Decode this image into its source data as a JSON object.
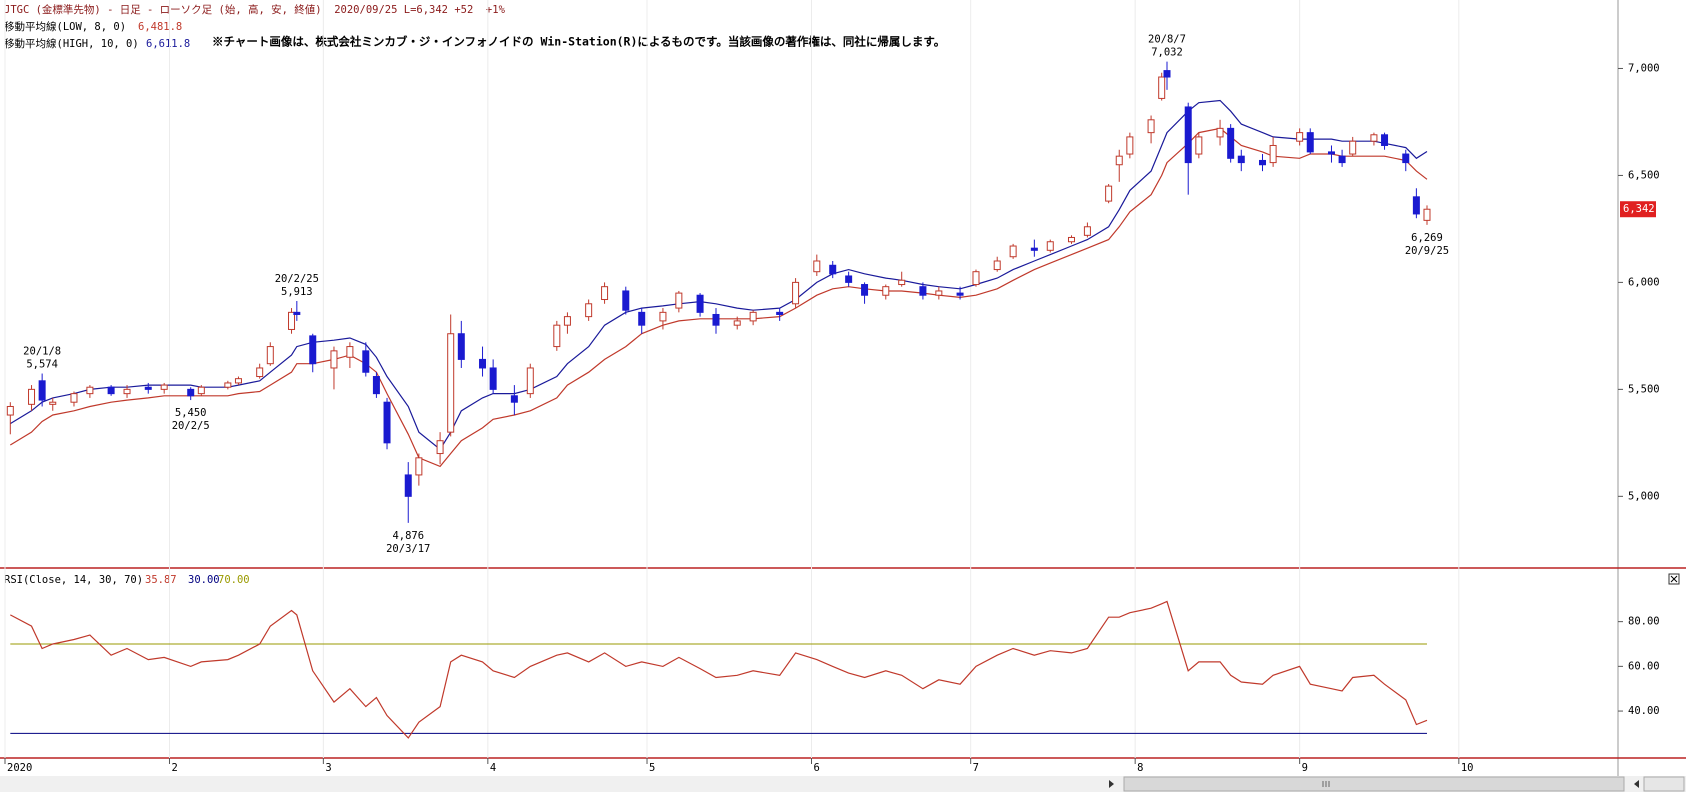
{
  "chart_data": [
    {
      "type": "candlestick",
      "title": "JTGC (金標準先物) - 日足 - ローソク足 (始, 高, 安, 終値)  2020/09/25 L=6,342 +52  +1%",
      "note": "※チャート画像は、株式会社ミンカブ・ジ・インフォノイドの Win-Station(R)によるものです。当該画像の著作権は、同社に帰属します。",
      "up_color": "#c0392b",
      "down_color": "#1a1ad0",
      "x": [
        "2020-01-02",
        "2020-01-06",
        "2020-01-08",
        "2020-01-10",
        "2020-01-14",
        "2020-01-17",
        "2020-01-21",
        "2020-01-24",
        "2020-01-28",
        "2020-01-31",
        "2020-02-05",
        "2020-02-07",
        "2020-02-12",
        "2020-02-14",
        "2020-02-18",
        "2020-02-20",
        "2020-02-24",
        "2020-02-25",
        "2020-02-28",
        "2020-03-03",
        "2020-03-06",
        "2020-03-09",
        "2020-03-11",
        "2020-03-13",
        "2020-03-17",
        "2020-03-19",
        "2020-03-23",
        "2020-03-25",
        "2020-03-27",
        "2020-03-31",
        "2020-04-02",
        "2020-04-06",
        "2020-04-09",
        "2020-04-14",
        "2020-04-16",
        "2020-04-20",
        "2020-04-23",
        "2020-04-27",
        "2020-04-30",
        "2020-05-04",
        "2020-05-07",
        "2020-05-11",
        "2020-05-14",
        "2020-05-18",
        "2020-05-21",
        "2020-05-26",
        "2020-05-29",
        "2020-06-02",
        "2020-06-05",
        "2020-06-08",
        "2020-06-11",
        "2020-06-15",
        "2020-06-18",
        "2020-06-22",
        "2020-06-25",
        "2020-06-29",
        "2020-07-02",
        "2020-07-06",
        "2020-07-09",
        "2020-07-13",
        "2020-07-16",
        "2020-07-20",
        "2020-07-23",
        "2020-07-27",
        "2020-07-29",
        "2020-07-31",
        "2020-08-04",
        "2020-08-06",
        "2020-08-07",
        "2020-08-11",
        "2020-08-13",
        "2020-08-17",
        "2020-08-19",
        "2020-08-21",
        "2020-08-25",
        "2020-08-27",
        "2020-09-01",
        "2020-09-03",
        "2020-09-07",
        "2020-09-09",
        "2020-09-11",
        "2020-09-15",
        "2020-09-17",
        "2020-09-21",
        "2020-09-23",
        "2020-09-25"
      ],
      "open": [
        5380,
        5430,
        5540,
        5430,
        5440,
        5480,
        5510,
        5480,
        5510,
        5500,
        5500,
        5480,
        5510,
        5530,
        5560,
        5620,
        5780,
        5860,
        5750,
        5600,
        5650,
        5680,
        5560,
        5440,
        5100,
        5100,
        5200,
        5300,
        5760,
        5640,
        5600,
        5470,
        5480,
        5700,
        5800,
        5840,
        5920,
        5960,
        5860,
        5820,
        5880,
        5940,
        5850,
        5800,
        5820,
        5860,
        5900,
        6050,
        6080,
        6030,
        5990,
        5940,
        5990,
        5980,
        5940,
        5950,
        5990,
        6060,
        6120,
        6160,
        6150,
        6190,
        6220,
        6380,
        6550,
        6600,
        6700,
        6860,
        6990,
        6820,
        6600,
        6680,
        6720,
        6590,
        6570,
        6560,
        6660,
        6700,
        6610,
        6590,
        6600,
        6660,
        6690,
        6600,
        6400,
        6290
      ],
      "high": [
        5440,
        5520,
        5574,
        5460,
        5490,
        5520,
        5520,
        5520,
        5530,
        5530,
        5510,
        5520,
        5540,
        5560,
        5620,
        5720,
        5880,
        5913,
        5760,
        5700,
        5720,
        5720,
        5580,
        5460,
        5160,
        5200,
        5300,
        5850,
        5820,
        5700,
        5640,
        5520,
        5620,
        5820,
        5860,
        5920,
        6000,
        5980,
        5880,
        5880,
        5960,
        5950,
        5880,
        5840,
        5870,
        5880,
        6020,
        6130,
        6100,
        6050,
        6000,
        5990,
        6050,
        6000,
        5980,
        5980,
        6060,
        6120,
        6180,
        6200,
        6200,
        6220,
        6280,
        6460,
        6620,
        6700,
        6780,
        6980,
        7032,
        6840,
        6700,
        6760,
        6740,
        6620,
        6600,
        6680,
        6720,
        6720,
        6640,
        6620,
        6680,
        6700,
        6700,
        6620,
        6440,
        6360
      ],
      "low": [
        5290,
        5400,
        5420,
        5400,
        5420,
        5460,
        5470,
        5460,
        5480,
        5480,
        5450,
        5470,
        5500,
        5520,
        5550,
        5610,
        5760,
        5820,
        5580,
        5500,
        5600,
        5560,
        5460,
        5220,
        4876,
        5050,
        5150,
        5280,
        5600,
        5560,
        5480,
        5380,
        5460,
        5680,
        5760,
        5820,
        5900,
        5850,
        5760,
        5780,
        5860,
        5840,
        5760,
        5780,
        5800,
        5820,
        5880,
        6030,
        6020,
        5980,
        5900,
        5920,
        5980,
        5920,
        5920,
        5920,
        5980,
        6050,
        6110,
        6120,
        6140,
        6180,
        6210,
        6370,
        6470,
        6580,
        6650,
        6850,
        6900,
        6410,
        6580,
        6640,
        6560,
        6520,
        6520,
        6540,
        6640,
        6600,
        6560,
        6540,
        6590,
        6640,
        6620,
        6520,
        6300,
        6269
      ],
      "close": [
        5420,
        5500,
        5450,
        5440,
        5480,
        5510,
        5480,
        5500,
        5500,
        5520,
        5470,
        5510,
        5530,
        5550,
        5600,
        5700,
        5860,
        5850,
        5620,
        5680,
        5700,
        5580,
        5480,
        5250,
        5000,
        5180,
        5260,
        5760,
        5640,
        5600,
        5500,
        5440,
        5600,
        5800,
        5840,
        5900,
        5980,
        5870,
        5800,
        5860,
        5950,
        5860,
        5800,
        5820,
        5860,
        5850,
        6000,
        6100,
        6040,
        6000,
        5940,
        5980,
        6010,
        5940,
        5960,
        5940,
        6050,
        6100,
        6170,
        6150,
        6190,
        6210,
        6260,
        6450,
        6590,
        6680,
        6760,
        6960,
        6960,
        6560,
        6680,
        6720,
        6580,
        6560,
        6550,
        6640,
        6700,
        6610,
        6600,
        6560,
        6660,
        6690,
        6640,
        6560,
        6320,
        6342
      ],
      "series": [
        {
          "name": "移動平均線(LOW, 8, 0)",
          "color": "#c0392b",
          "current": {
            "value": 6481.8,
            "label": "6,481.8"
          },
          "values": [
            5240,
            5300,
            5350,
            5380,
            5400,
            5420,
            5440,
            5450,
            5460,
            5470,
            5470,
            5470,
            5470,
            5480,
            5490,
            5520,
            5580,
            5620,
            5620,
            5640,
            5660,
            5620,
            5580,
            5480,
            5290,
            5180,
            5140,
            5200,
            5260,
            5320,
            5360,
            5380,
            5400,
            5460,
            5520,
            5580,
            5640,
            5700,
            5760,
            5800,
            5820,
            5830,
            5830,
            5830,
            5830,
            5840,
            5880,
            5940,
            5970,
            5980,
            5970,
            5960,
            5960,
            5950,
            5940,
            5930,
            5940,
            5970,
            6010,
            6060,
            6090,
            6130,
            6160,
            6200,
            6260,
            6330,
            6410,
            6500,
            6560,
            6650,
            6700,
            6720,
            6680,
            6640,
            6610,
            6590,
            6580,
            6600,
            6600,
            6590,
            6590,
            6590,
            6590,
            6570,
            6520,
            6481.8
          ]
        },
        {
          "name": "移動平均線(HIGH, 10, 0)",
          "color": "#1a1a9a",
          "current": {
            "value": 6611.8,
            "label": "6,611.8"
          },
          "values": [
            5340,
            5400,
            5440,
            5460,
            5480,
            5500,
            5510,
            5510,
            5520,
            5520,
            5520,
            5510,
            5510,
            5520,
            5540,
            5580,
            5660,
            5700,
            5720,
            5730,
            5740,
            5710,
            5650,
            5560,
            5420,
            5300,
            5220,
            5300,
            5400,
            5460,
            5480,
            5480,
            5500,
            5560,
            5620,
            5700,
            5800,
            5860,
            5880,
            5890,
            5900,
            5910,
            5900,
            5880,
            5870,
            5880,
            5920,
            6000,
            6040,
            6060,
            6040,
            6020,
            6010,
            5990,
            5980,
            5970,
            5990,
            6020,
            6060,
            6100,
            6130,
            6170,
            6200,
            6260,
            6340,
            6430,
            6520,
            6640,
            6700,
            6800,
            6840,
            6850,
            6800,
            6740,
            6700,
            6680,
            6670,
            6670,
            6670,
            6660,
            6660,
            6660,
            6650,
            6630,
            6580,
            6611.8
          ]
        }
      ],
      "ylim": [
        4665,
        7320
      ],
      "yticks": [
        {
          "value": 5000,
          "label": "5,000"
        },
        {
          "value": 5500,
          "label": "5,500"
        },
        {
          "value": 6000,
          "label": "6,000"
        },
        {
          "value": 6500,
          "label": "6,500"
        },
        {
          "value": 7000,
          "label": "7,000"
        }
      ],
      "last_price": {
        "value": 6342,
        "label": "6,342"
      },
      "annotations": [
        {
          "x": "2020-01-08",
          "value": 5574,
          "label": "5,574",
          "date_label": "20/1/8",
          "position": "above"
        },
        {
          "x": "2020-02-25",
          "value": 5913,
          "label": "5,913",
          "date_label": "20/2/25",
          "position": "above"
        },
        {
          "x": "2020-02-05",
          "value": 5450,
          "label": "5,450",
          "date_label": "20/2/5",
          "position": "below"
        },
        {
          "x": "2020-03-17",
          "value": 4876,
          "label": "4,876",
          "date_label": "20/3/17",
          "position": "below"
        },
        {
          "x": "2020-08-07",
          "value": 7032,
          "label": "7,032",
          "date_label": "20/8/7",
          "position": "above"
        },
        {
          "x": "2020-09-25",
          "value": 6269,
          "label": "6,269",
          "date_label": "20/9/25",
          "position": "below"
        }
      ]
    },
    {
      "type": "line",
      "x": [
        "2020-01-02",
        "2020-01-06",
        "2020-01-08",
        "2020-01-10",
        "2020-01-14",
        "2020-01-17",
        "2020-01-21",
        "2020-01-24",
        "2020-01-28",
        "2020-01-31",
        "2020-02-05",
        "2020-02-07",
        "2020-02-12",
        "2020-02-14",
        "2020-02-18",
        "2020-02-20",
        "2020-02-24",
        "2020-02-25",
        "2020-02-28",
        "2020-03-03",
        "2020-03-06",
        "2020-03-09",
        "2020-03-11",
        "2020-03-13",
        "2020-03-17",
        "2020-03-19",
        "2020-03-23",
        "2020-03-25",
        "2020-03-27",
        "2020-03-31",
        "2020-04-02",
        "2020-04-06",
        "2020-04-09",
        "2020-04-14",
        "2020-04-16",
        "2020-04-20",
        "2020-04-23",
        "2020-04-27",
        "2020-04-30",
        "2020-05-04",
        "2020-05-07",
        "2020-05-11",
        "2020-05-14",
        "2020-05-18",
        "2020-05-21",
        "2020-05-26",
        "2020-05-29",
        "2020-06-02",
        "2020-06-05",
        "2020-06-08",
        "2020-06-11",
        "2020-06-15",
        "2020-06-18",
        "2020-06-22",
        "2020-06-25",
        "2020-06-29",
        "2020-07-02",
        "2020-07-06",
        "2020-07-09",
        "2020-07-13",
        "2020-07-16",
        "2020-07-20",
        "2020-07-23",
        "2020-07-27",
        "2020-07-29",
        "2020-07-31",
        "2020-08-04",
        "2020-08-06",
        "2020-08-07",
        "2020-08-11",
        "2020-08-13",
        "2020-08-17",
        "2020-08-19",
        "2020-08-21",
        "2020-08-25",
        "2020-08-27",
        "2020-09-01",
        "2020-09-03",
        "2020-09-07",
        "2020-09-09",
        "2020-09-11",
        "2020-09-15",
        "2020-09-17",
        "2020-09-21",
        "2020-09-23",
        "2020-09-25"
      ],
      "series": [
        {
          "name": "RSI(Close, 14, 30, 70)",
          "color": "#c0392b",
          "values": [
            83,
            78,
            68,
            70,
            72,
            74,
            65,
            68,
            63,
            64,
            60,
            62,
            63,
            65,
            70,
            78,
            85,
            83,
            58,
            44,
            50,
            42,
            46,
            38,
            28,
            35,
            42,
            62,
            65,
            62,
            58,
            55,
            60,
            65,
            66,
            62,
            66,
            60,
            62,
            60,
            64,
            59,
            55,
            56,
            58,
            56,
            66,
            63,
            60,
            57,
            55,
            58,
            56,
            50,
            54,
            52,
            60,
            65,
            68,
            65,
            67,
            66,
            68,
            82,
            82,
            84,
            86,
            88,
            89,
            58,
            62,
            62,
            56,
            53,
            52,
            56,
            60,
            52,
            50,
            49,
            55,
            56,
            52,
            45,
            34,
            35.87
          ]
        }
      ],
      "current": 35.87,
      "levels": [
        {
          "value": 30,
          "label": "30.00",
          "color": "#000080"
        },
        {
          "value": 70,
          "label": "70.00",
          "color": "#9a9a00"
        }
      ],
      "ylim": [
        19,
        104
      ],
      "yticks": [
        {
          "value": 40,
          "label": "40.00"
        },
        {
          "value": 60,
          "label": "60.00"
        },
        {
          "value": 80,
          "label": "80.00"
        }
      ],
      "xlim": [
        "2020-01-01",
        "2020-10-31"
      ],
      "xticks": [
        {
          "value": "2020-01-01",
          "label": "2020"
        },
        {
          "value": "2020-02-01",
          "label": "2"
        },
        {
          "value": "2020-03-01",
          "label": "3"
        },
        {
          "value": "2020-04-01",
          "label": "4"
        },
        {
          "value": "2020-05-01",
          "label": "5"
        },
        {
          "value": "2020-06-01",
          "label": "6"
        },
        {
          "value": "2020-07-01",
          "label": "7"
        },
        {
          "value": "2020-08-01",
          "label": "8"
        },
        {
          "value": "2020-09-01",
          "label": "9"
        },
        {
          "value": "2020-10-01",
          "label": "10"
        }
      ]
    }
  ]
}
